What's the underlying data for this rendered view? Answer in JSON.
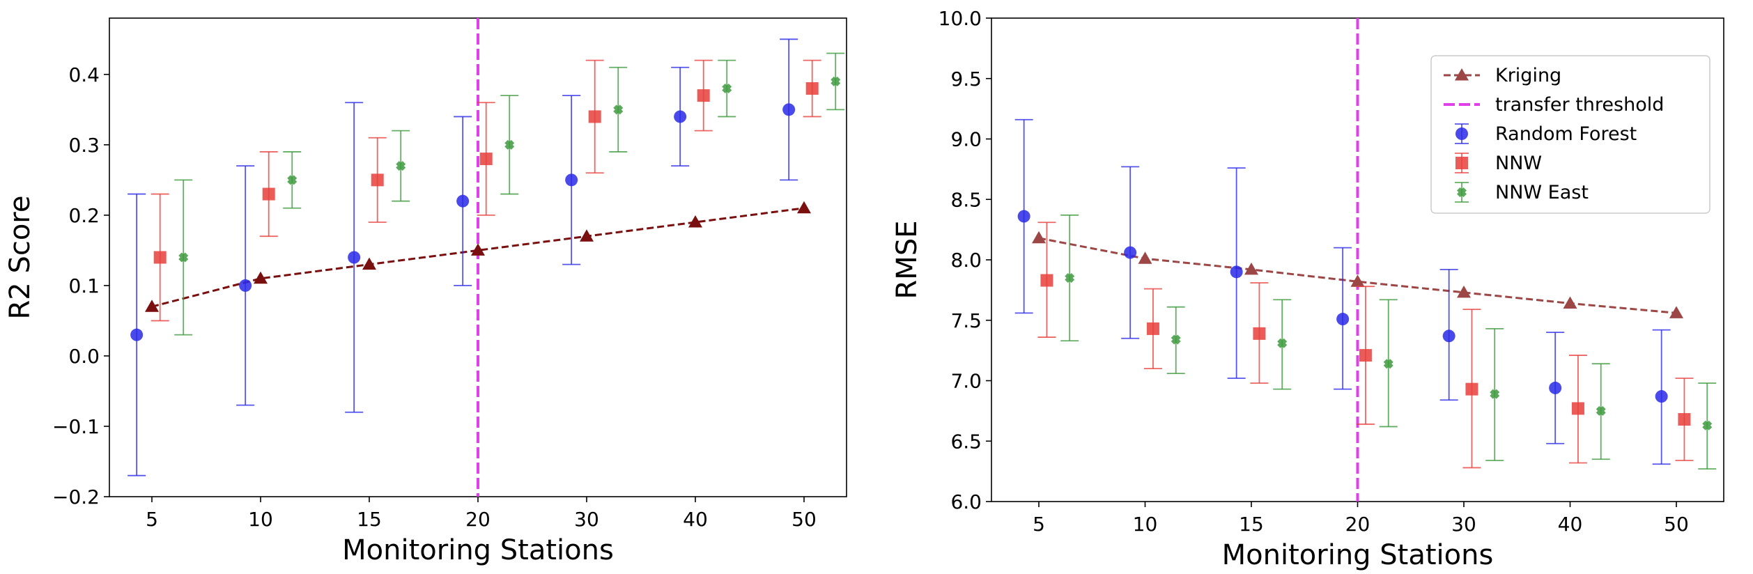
{
  "colors": {
    "random_forest": "#2a2ae8",
    "nnw": "#e8403c",
    "nnw_east": "#3d9a3d",
    "kriging_left": "#7a0f0f",
    "kriging_right": "#9c4646",
    "threshold": "#e040e8"
  },
  "chart_data": [
    {
      "type": "scatter",
      "panel": "left",
      "xlabel": "Monitoring Stations",
      "ylabel": "R2 Score",
      "categories": [
        "5",
        "10",
        "15",
        "20",
        "30",
        "40",
        "50"
      ],
      "ylim": [
        -0.2,
        0.48
      ],
      "yticks": [
        "−0.2",
        "−0.1",
        "0.0",
        "0.1",
        "0.2",
        "0.3",
        "0.4"
      ],
      "ytick_values": [
        -0.2,
        -0.1,
        0.0,
        0.1,
        0.2,
        0.3,
        0.4
      ],
      "threshold_category": "20",
      "grid": false,
      "series": [
        {
          "name": "Kriging",
          "marker": "triangle",
          "line": "dashed",
          "values": [
            0.07,
            0.11,
            0.13,
            0.15,
            0.17,
            0.19,
            0.21
          ]
        },
        {
          "name": "Random Forest",
          "marker": "circle",
          "values": [
            0.03,
            0.1,
            0.14,
            0.22,
            0.25,
            0.34,
            0.35
          ],
          "err_low": [
            -0.17,
            -0.07,
            -0.08,
            0.1,
            0.13,
            0.27,
            0.25
          ],
          "err_high": [
            0.23,
            0.27,
            0.36,
            0.34,
            0.37,
            0.41,
            0.45
          ]
        },
        {
          "name": "NNW",
          "marker": "square",
          "values": [
            0.14,
            0.23,
            0.25,
            0.28,
            0.34,
            0.37,
            0.38
          ],
          "err_low": [
            0.05,
            0.17,
            0.19,
            0.2,
            0.26,
            0.32,
            0.34
          ],
          "err_high": [
            0.23,
            0.29,
            0.31,
            0.36,
            0.42,
            0.42,
            0.42
          ]
        },
        {
          "name": "NNW East",
          "marker": "x",
          "values": [
            0.14,
            0.25,
            0.27,
            0.3,
            0.35,
            0.38,
            0.39
          ],
          "err_low": [
            0.03,
            0.21,
            0.22,
            0.23,
            0.29,
            0.34,
            0.35
          ],
          "err_high": [
            0.25,
            0.29,
            0.32,
            0.37,
            0.41,
            0.42,
            0.43
          ]
        }
      ]
    },
    {
      "type": "scatter",
      "panel": "right",
      "xlabel": "Monitoring Stations",
      "ylabel": "RMSE",
      "categories": [
        "5",
        "10",
        "15",
        "20",
        "30",
        "40",
        "50"
      ],
      "ylim": [
        6.0,
        10.0
      ],
      "yticks": [
        "6.0",
        "6.5",
        "7.0",
        "7.5",
        "8.0",
        "8.5",
        "9.0",
        "9.5",
        "10.0"
      ],
      "ytick_values": [
        6.0,
        6.5,
        7.0,
        7.5,
        8.0,
        8.5,
        9.0,
        9.5,
        10.0
      ],
      "threshold_category": "20",
      "grid": false,
      "legend_position": "upper right",
      "legend": [
        "Kriging",
        "transfer threshold",
        "Random Forest",
        "NNW",
        "NNW East"
      ],
      "series": [
        {
          "name": "Kriging",
          "marker": "triangle",
          "line": "dashed",
          "values": [
            8.18,
            8.01,
            7.92,
            7.82,
            7.73,
            7.64,
            7.56
          ]
        },
        {
          "name": "Random Forest",
          "marker": "circle",
          "values": [
            8.36,
            8.06,
            7.9,
            7.51,
            7.37,
            6.94,
            6.87
          ],
          "err_low": [
            7.56,
            7.35,
            7.02,
            6.93,
            6.84,
            6.48,
            6.31
          ],
          "err_high": [
            9.16,
            8.77,
            8.76,
            8.1,
            7.92,
            7.4,
            7.42
          ]
        },
        {
          "name": "NNW",
          "marker": "square",
          "values": [
            7.83,
            7.43,
            7.39,
            7.21,
            6.93,
            6.77,
            6.68
          ],
          "err_low": [
            7.36,
            7.1,
            6.98,
            6.64,
            6.28,
            6.32,
            6.34
          ],
          "err_high": [
            8.31,
            7.76,
            7.81,
            7.78,
            7.59,
            7.21,
            7.02
          ]
        },
        {
          "name": "NNW East",
          "marker": "x",
          "values": [
            7.85,
            7.34,
            7.31,
            7.14,
            6.89,
            6.75,
            6.63
          ],
          "err_low": [
            7.33,
            7.06,
            6.93,
            6.62,
            6.34,
            6.35,
            6.27
          ],
          "err_high": [
            8.37,
            7.61,
            7.67,
            7.67,
            7.43,
            7.14,
            6.98
          ]
        }
      ]
    }
  ]
}
